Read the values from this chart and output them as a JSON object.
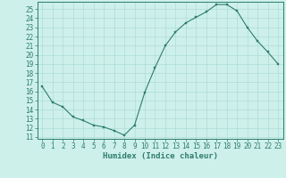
{
  "x": [
    0,
    1,
    2,
    3,
    4,
    5,
    6,
    7,
    8,
    9,
    10,
    11,
    12,
    13,
    14,
    15,
    16,
    17,
    18,
    19,
    20,
    21,
    22,
    23
  ],
  "y": [
    16.5,
    14.8,
    14.3,
    13.2,
    12.8,
    12.3,
    12.1,
    11.7,
    11.2,
    12.3,
    15.9,
    18.6,
    21.0,
    22.5,
    23.5,
    24.1,
    24.7,
    25.5,
    25.5,
    24.8,
    23.0,
    21.5,
    20.3,
    19.0
  ],
  "xlabel": "Humidex (Indice chaleur)",
  "xlim": [
    -0.5,
    23.5
  ],
  "ylim": [
    11,
    25.5
  ],
  "xticks": [
    0,
    1,
    2,
    3,
    4,
    5,
    6,
    7,
    8,
    9,
    10,
    11,
    12,
    13,
    14,
    15,
    16,
    17,
    18,
    19,
    20,
    21,
    22,
    23
  ],
  "yticks": [
    11,
    12,
    13,
    14,
    15,
    16,
    17,
    18,
    19,
    20,
    21,
    22,
    23,
    24,
    25
  ],
  "line_color": "#2e7d6e",
  "marker_color": "#2e7d6e",
  "bg_color": "#cef0ea",
  "grid_color": "#aeddd8",
  "axis_label_fontsize": 6.5,
  "tick_fontsize": 5.5
}
